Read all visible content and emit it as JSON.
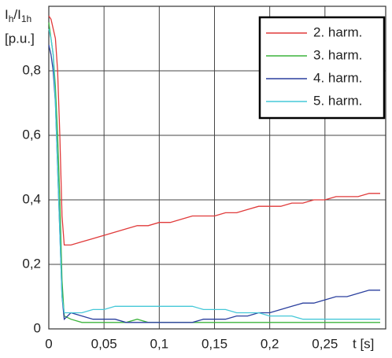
{
  "chart_data": {
    "type": "line",
    "ylabel": [
      "I",
      "h",
      "/I",
      "1h"
    ],
    "yunit": "[p.u.]",
    "xlabel": "t [s]",
    "x": [
      0,
      0.002,
      0.004,
      0.006,
      0.008,
      0.01,
      0.012,
      0.014,
      0.02,
      0.03,
      0.04,
      0.05,
      0.06,
      0.07,
      0.08,
      0.09,
      0.1,
      0.11,
      0.12,
      0.13,
      0.14,
      0.15,
      0.16,
      0.17,
      0.18,
      0.19,
      0.2,
      0.21,
      0.22,
      0.23,
      0.24,
      0.25,
      0.26,
      0.27,
      0.28,
      0.29,
      0.3
    ],
    "series": [
      {
        "name": "2. harm.",
        "color": "#e03a3a",
        "values": [
          0.97,
          0.96,
          0.93,
          0.9,
          0.8,
          0.6,
          0.35,
          0.26,
          0.26,
          0.27,
          0.28,
          0.29,
          0.3,
          0.31,
          0.32,
          0.32,
          0.33,
          0.33,
          0.34,
          0.35,
          0.35,
          0.35,
          0.36,
          0.36,
          0.37,
          0.38,
          0.38,
          0.38,
          0.39,
          0.39,
          0.4,
          0.4,
          0.41,
          0.41,
          0.41,
          0.42,
          0.42
        ]
      },
      {
        "name": "3. harm.",
        "color": "#3cb43c",
        "values": [
          0.95,
          0.9,
          0.85,
          0.75,
          0.6,
          0.4,
          0.15,
          0.04,
          0.03,
          0.02,
          0.02,
          0.02,
          0.02,
          0.02,
          0.03,
          0.02,
          0.02,
          0.02,
          0.02,
          0.02,
          0.02,
          0.02,
          0.02,
          0.02,
          0.02,
          0.02,
          0.02,
          0.02,
          0.02,
          0.02,
          0.02,
          0.02,
          0.02,
          0.02,
          0.02,
          0.02,
          0.02
        ]
      },
      {
        "name": "4. harm.",
        "color": "#2a3f9e",
        "values": [
          0.88,
          0.85,
          0.8,
          0.7,
          0.5,
          0.3,
          0.1,
          0.03,
          0.05,
          0.04,
          0.03,
          0.03,
          0.03,
          0.02,
          0.02,
          0.02,
          0.02,
          0.02,
          0.02,
          0.02,
          0.03,
          0.03,
          0.03,
          0.04,
          0.04,
          0.05,
          0.05,
          0.06,
          0.07,
          0.08,
          0.08,
          0.09,
          0.1,
          0.1,
          0.11,
          0.12,
          0.12
        ]
      },
      {
        "name": "5. harm.",
        "color": "#45c8d8",
        "values": [
          0.93,
          0.9,
          0.85,
          0.7,
          0.5,
          0.3,
          0.1,
          0.05,
          0.05,
          0.05,
          0.06,
          0.06,
          0.07,
          0.07,
          0.07,
          0.07,
          0.07,
          0.07,
          0.07,
          0.07,
          0.06,
          0.06,
          0.06,
          0.05,
          0.05,
          0.05,
          0.04,
          0.04,
          0.04,
          0.03,
          0.03,
          0.03,
          0.03,
          0.03,
          0.03,
          0.03,
          0.03
        ]
      }
    ],
    "xlim": [
      0,
      0.305
    ],
    "xticks": [
      0,
      {
        "value": 0.05,
        "label": "0,05"
      },
      {
        "value": 0.1,
        "label": "0,1"
      },
      {
        "value": 0.15,
        "label": "0,15"
      },
      {
        "value": 0.2,
        "label": "0,2"
      },
      {
        "value": 0.25,
        "label": "0,25"
      }
    ],
    "ylim": [
      0,
      1
    ],
    "yticks": [
      0,
      {
        "value": 0.2,
        "label": "0,2"
      },
      {
        "value": 0.4,
        "label": "0,4"
      },
      {
        "value": 0.6,
        "label": "0,6"
      },
      {
        "value": 0.8,
        "label": "0,8"
      }
    ],
    "grid": true,
    "legend": "top-right"
  }
}
